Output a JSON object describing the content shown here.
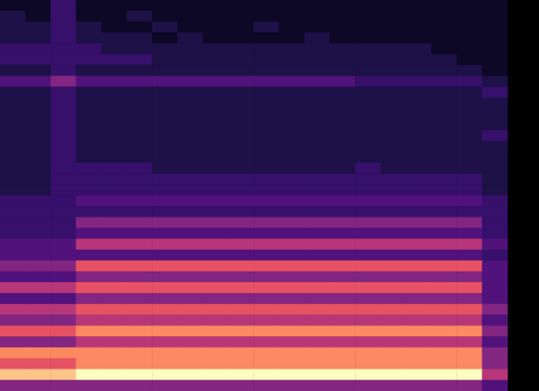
{
  "chart_data": {
    "type": "heatmap",
    "tick_labels": false,
    "zlim": [
      0,
      10
    ],
    "colors": [
      "#000004",
      "#0c0826",
      "#1d1147",
      "#36106b",
      "#51127c",
      "#822681",
      "#b73779",
      "#e75263",
      "#fc8961",
      "#fec488",
      "#fcfdbf"
    ],
    "cells": [
      [
        1,
        1,
        3,
        1,
        1,
        1,
        1,
        1,
        1,
        1,
        1,
        1,
        1,
        1,
        1,
        1,
        1,
        1,
        1,
        1
      ],
      [
        2,
        1,
        3,
        1,
        1,
        2,
        1,
        1,
        1,
        1,
        1,
        1,
        1,
        1,
        1,
        1,
        1,
        1,
        1,
        1
      ],
      [
        2,
        2,
        3,
        2,
        1,
        1,
        2,
        1,
        1,
        1,
        2,
        1,
        1,
        1,
        1,
        1,
        1,
        1,
        1,
        1
      ],
      [
        2,
        2,
        3,
        2,
        2,
        2,
        1,
        2,
        1,
        1,
        1,
        1,
        2,
        1,
        1,
        1,
        1,
        1,
        1,
        1
      ],
      [
        3,
        3,
        3,
        3,
        2,
        2,
        2,
        2,
        2,
        2,
        2,
        2,
        2,
        2,
        2,
        2,
        2,
        1,
        1,
        1
      ],
      [
        3,
        3,
        3,
        3,
        3,
        3,
        2,
        2,
        2,
        2,
        2,
        2,
        2,
        2,
        2,
        2,
        2,
        2,
        1,
        1
      ],
      [
        2,
        2,
        3,
        2,
        2,
        2,
        2,
        2,
        2,
        2,
        2,
        2,
        2,
        2,
        2,
        2,
        2,
        2,
        2,
        1
      ],
      [
        4,
        4,
        5,
        4,
        4,
        4,
        4,
        4,
        4,
        4,
        4,
        4,
        4,
        4,
        3,
        3,
        3,
        3,
        3,
        2
      ],
      [
        2,
        2,
        3,
        2,
        2,
        2,
        2,
        2,
        2,
        2,
        2,
        2,
        2,
        2,
        2,
        2,
        2,
        2,
        2,
        3
      ],
      [
        2,
        2,
        3,
        2,
        2,
        2,
        2,
        2,
        2,
        2,
        2,
        2,
        2,
        2,
        2,
        2,
        2,
        2,
        2,
        2
      ],
      [
        2,
        2,
        3,
        2,
        2,
        2,
        2,
        2,
        2,
        2,
        2,
        2,
        2,
        2,
        2,
        2,
        2,
        2,
        2,
        2
      ],
      [
        2,
        2,
        3,
        2,
        2,
        2,
        2,
        2,
        2,
        2,
        2,
        2,
        2,
        2,
        2,
        2,
        2,
        2,
        2,
        2
      ],
      [
        2,
        2,
        3,
        2,
        2,
        2,
        2,
        2,
        2,
        2,
        2,
        2,
        2,
        2,
        2,
        2,
        2,
        2,
        2,
        3
      ],
      [
        2,
        2,
        3,
        2,
        2,
        2,
        2,
        2,
        2,
        2,
        2,
        2,
        2,
        2,
        2,
        2,
        2,
        2,
        2,
        2
      ],
      [
        2,
        2,
        3,
        2,
        2,
        2,
        2,
        2,
        2,
        2,
        2,
        2,
        2,
        2,
        2,
        2,
        2,
        2,
        2,
        2
      ],
      [
        2,
        2,
        3,
        3,
        3,
        3,
        2,
        2,
        2,
        2,
        2,
        2,
        2,
        2,
        3,
        2,
        2,
        2,
        2,
        2
      ],
      [
        2,
        2,
        3,
        3,
        3,
        3,
        3,
        3,
        3,
        3,
        3,
        3,
        3,
        3,
        3,
        3,
        3,
        3,
        3,
        2
      ],
      [
        2,
        2,
        3,
        3,
        3,
        3,
        3,
        3,
        3,
        3,
        3,
        3,
        3,
        3,
        3,
        3,
        3,
        3,
        3,
        2
      ],
      [
        3,
        3,
        3,
        4,
        4,
        4,
        4,
        4,
        4,
        4,
        4,
        4,
        4,
        4,
        4,
        4,
        4,
        4,
        4,
        3
      ],
      [
        3,
        3,
        3,
        3,
        3,
        3,
        3,
        3,
        3,
        3,
        3,
        3,
        3,
        3,
        3,
        3,
        3,
        3,
        3,
        3
      ],
      [
        3,
        3,
        3,
        5,
        5,
        5,
        5,
        5,
        5,
        5,
        5,
        5,
        5,
        5,
        5,
        5,
        5,
        5,
        5,
        3
      ],
      [
        3,
        3,
        3,
        4,
        4,
        4,
        4,
        4,
        4,
        4,
        4,
        4,
        4,
        4,
        4,
        4,
        4,
        4,
        4,
        3
      ],
      [
        4,
        4,
        4,
        6,
        6,
        6,
        6,
        6,
        6,
        6,
        6,
        6,
        6,
        6,
        6,
        6,
        6,
        6,
        6,
        4
      ],
      [
        4,
        4,
        4,
        4,
        4,
        4,
        4,
        4,
        4,
        4,
        4,
        4,
        4,
        4,
        4,
        4,
        4,
        4,
        4,
        3
      ],
      [
        5,
        5,
        5,
        7,
        7,
        7,
        7,
        7,
        7,
        7,
        7,
        7,
        7,
        7,
        7,
        7,
        7,
        7,
        7,
        4
      ],
      [
        4,
        4,
        4,
        5,
        5,
        5,
        5,
        5,
        5,
        5,
        5,
        5,
        5,
        5,
        5,
        5,
        5,
        5,
        5,
        4
      ],
      [
        6,
        6,
        6,
        7,
        7,
        7,
        7,
        7,
        7,
        7,
        7,
        7,
        7,
        7,
        7,
        7,
        7,
        7,
        7,
        4
      ],
      [
        4,
        4,
        4,
        5,
        5,
        5,
        5,
        5,
        5,
        5,
        5,
        5,
        5,
        5,
        5,
        5,
        5,
        5,
        5,
        4
      ],
      [
        6,
        6,
        6,
        7,
        7,
        7,
        7,
        7,
        7,
        7,
        7,
        7,
        7,
        7,
        7,
        7,
        7,
        7,
        7,
        5
      ],
      [
        5,
        5,
        5,
        6,
        6,
        6,
        6,
        6,
        6,
        6,
        6,
        6,
        6,
        6,
        6,
        6,
        6,
        6,
        6,
        4
      ],
      [
        7,
        7,
        7,
        8,
        8,
        8,
        8,
        8,
        8,
        8,
        8,
        8,
        8,
        8,
        8,
        8,
        8,
        8,
        8,
        5
      ],
      [
        5,
        5,
        5,
        6,
        6,
        6,
        6,
        6,
        6,
        6,
        6,
        6,
        6,
        6,
        6,
        6,
        6,
        6,
        6,
        4
      ],
      [
        8,
        8,
        8,
        8,
        8,
        8,
        8,
        8,
        8,
        8,
        8,
        8,
        8,
        8,
        8,
        8,
        8,
        8,
        8,
        5
      ],
      [
        7,
        7,
        7,
        8,
        8,
        8,
        8,
        8,
        8,
        8,
        8,
        8,
        8,
        8,
        8,
        8,
        8,
        8,
        8,
        5
      ],
      [
        9,
        9,
        9,
        10,
        10,
        10,
        10,
        10,
        10,
        10,
        10,
        10,
        10,
        10,
        10,
        10,
        10,
        10,
        10,
        6
      ],
      [
        5,
        5,
        5,
        5,
        5,
        5,
        5,
        5,
        5,
        5,
        5,
        5,
        5,
        5,
        5,
        5,
        5,
        5,
        5,
        4
      ]
    ]
  }
}
